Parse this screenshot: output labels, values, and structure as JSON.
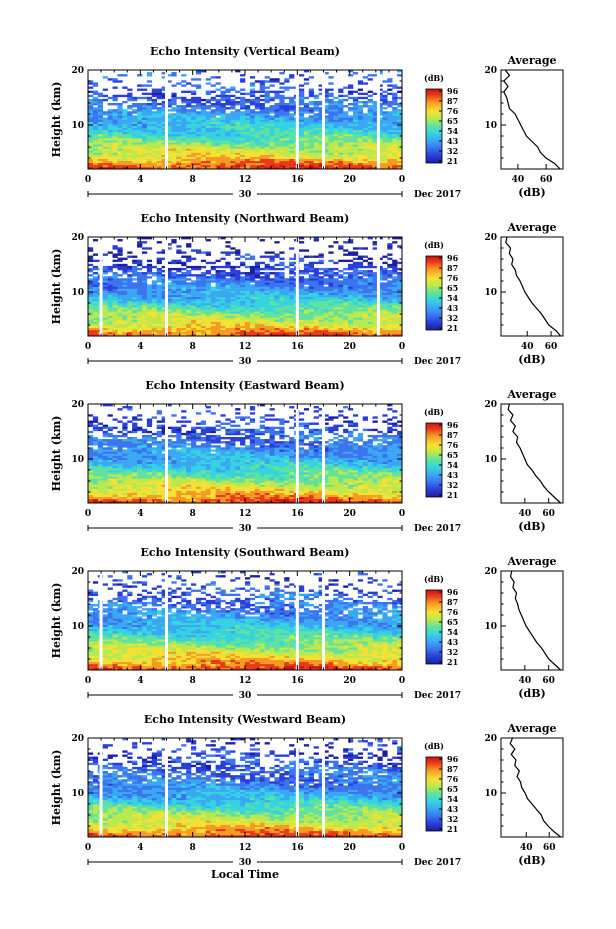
{
  "figure": {
    "x_axis_label": "Local Time",
    "x_ticks": [
      "0",
      "4",
      "8",
      "12",
      "16",
      "20",
      "0"
    ],
    "date_label": "30",
    "month_label": "Dec 2017",
    "colorbar_unit": "(dB)",
    "colorbar_ticks": [
      "96",
      "87",
      "76",
      "65",
      "54",
      "43",
      "32",
      "21"
    ],
    "colors": {
      "colormap": [
        "#1c1fa0",
        "#2a3fd8",
        "#3b74ee",
        "#3aa7f5",
        "#35d3e0",
        "#5fe2a0",
        "#b9e94e",
        "#f4e133",
        "#f79a23",
        "#e93a1c",
        "#c81412"
      ]
    }
  },
  "chart_data": [
    {
      "type": "heatmap",
      "panel": "vertical",
      "title": "Echo Intensity (Vertical Beam)",
      "ylabel": "Height (km)",
      "y_ticks": [
        "20",
        "10"
      ],
      "ylim": [
        2,
        20
      ],
      "xlim": [
        0,
        24
      ],
      "x_unit": "hours local time",
      "colorbar_range_db": [
        21,
        96
      ],
      "data_gaps_hours": [
        6,
        16,
        18,
        22.2
      ],
      "profile": {
        "title": "Average",
        "xlabel": "(dB)",
        "x_ticks": [
          "40",
          "60"
        ],
        "y_ticks": [
          "20",
          "10"
        ],
        "xlim": [
          28,
          72
        ],
        "height_km": [
          2,
          3,
          4,
          5,
          6,
          7,
          8,
          9,
          10,
          11,
          12,
          13,
          14,
          15,
          16,
          17,
          18,
          19,
          20
        ],
        "intensity_db": [
          70,
          66,
          60,
          56,
          54,
          50,
          46,
          44,
          42,
          40,
          38,
          34,
          33,
          32,
          30,
          33,
          30,
          34,
          31
        ]
      }
    },
    {
      "type": "heatmap",
      "panel": "northward",
      "title": "Echo Intensity (Northward Beam)",
      "ylabel": "Height (km)",
      "y_ticks": [
        "20",
        "10"
      ],
      "ylim": [
        2,
        20
      ],
      "xlim": [
        0,
        24
      ],
      "x_unit": "hours local time",
      "colorbar_range_db": [
        21,
        96
      ],
      "data_gaps_hours": [
        1,
        6,
        16,
        22.2
      ],
      "profile": {
        "title": "Average",
        "xlabel": "(dB)",
        "x_ticks": [
          "40",
          "60"
        ],
        "y_ticks": [
          "20",
          "10"
        ],
        "xlim": [
          18,
          70
        ],
        "height_km": [
          2,
          3,
          4,
          5,
          6,
          7,
          8,
          9,
          10,
          11,
          12,
          13,
          14,
          15,
          16,
          17,
          18,
          19,
          20
        ],
        "intensity_db": [
          68,
          64,
          58,
          55,
          52,
          48,
          44,
          41,
          38,
          36,
          34,
          31,
          30,
          27,
          28,
          25,
          26,
          22,
          23
        ]
      }
    },
    {
      "type": "heatmap",
      "panel": "eastward",
      "title": "Echo Intensity (Eastward Beam)",
      "ylabel": "Height (km)",
      "y_ticks": [
        "20",
        "10"
      ],
      "ylim": [
        2,
        20
      ],
      "xlim": [
        0,
        24
      ],
      "x_unit": "hours local time",
      "colorbar_range_db": [
        21,
        96
      ],
      "data_gaps_hours": [
        6,
        16,
        18
      ],
      "profile": {
        "title": "Average",
        "xlabel": "(dB)",
        "x_ticks": [
          "40",
          "60"
        ],
        "y_ticks": [
          "20",
          "10"
        ],
        "xlim": [
          20,
          72
        ],
        "height_km": [
          2,
          3,
          4,
          5,
          6,
          7,
          8,
          9,
          10,
          11,
          12,
          13,
          14,
          15,
          16,
          17,
          18,
          19,
          20
        ],
        "intensity_db": [
          70,
          65,
          60,
          56,
          53,
          49,
          46,
          42,
          40,
          38,
          36,
          33,
          34,
          30,
          32,
          28,
          30,
          26,
          27
        ]
      }
    },
    {
      "type": "heatmap",
      "panel": "southward",
      "title": "Echo Intensity (Southward Beam)",
      "ylabel": "Height (km)",
      "y_ticks": [
        "20",
        "10"
      ],
      "ylim": [
        2,
        20
      ],
      "xlim": [
        0,
        24
      ],
      "x_unit": "hours local time",
      "colorbar_range_db": [
        21,
        96
      ],
      "data_gaps_hours": [
        1,
        6,
        16,
        18
      ],
      "profile": {
        "title": "Average",
        "xlabel": "(dB)",
        "x_ticks": [
          "40",
          "60"
        ],
        "y_ticks": [
          "20",
          "10"
        ],
        "xlim": [
          20,
          72
        ],
        "height_km": [
          2,
          3,
          4,
          5,
          6,
          7,
          8,
          9,
          10,
          11,
          12,
          13,
          14,
          15,
          16,
          17,
          18,
          19,
          20
        ],
        "intensity_db": [
          70,
          65,
          60,
          57,
          54,
          50,
          47,
          44,
          41,
          39,
          37,
          35,
          34,
          32,
          33,
          30,
          31,
          28,
          29
        ]
      }
    },
    {
      "type": "heatmap",
      "panel": "westward",
      "title": "Echo Intensity (Westward Beam)",
      "ylabel": "Height (km)",
      "y_ticks": [
        "20",
        "10"
      ],
      "ylim": [
        2,
        20
      ],
      "xlim": [
        0,
        24
      ],
      "x_unit": "hours local time",
      "colorbar_range_db": [
        21,
        96
      ],
      "data_gaps_hours": [
        1,
        6,
        16,
        18
      ],
      "profile": {
        "title": "Average",
        "xlabel": "(dB)",
        "x_ticks": [
          "40",
          "60"
        ],
        "y_ticks": [
          "20",
          "10"
        ],
        "xlim": [
          18,
          72
        ],
        "height_km": [
          2,
          3,
          4,
          5,
          6,
          7,
          8,
          9,
          10,
          11,
          12,
          13,
          14,
          15,
          16,
          17,
          18,
          19,
          20
        ],
        "intensity_db": [
          70,
          64,
          59,
          55,
          53,
          49,
          45,
          41,
          39,
          36,
          35,
          32,
          34,
          30,
          31,
          27,
          30,
          26,
          28
        ]
      }
    }
  ]
}
